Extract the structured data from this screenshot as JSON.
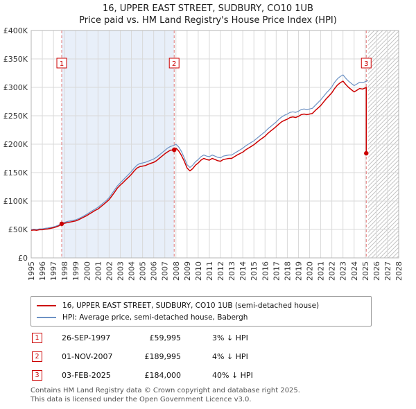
{
  "page": {
    "title": "16, UPPER EAST STREET, SUDBURY, CO10 1UB",
    "subtitle": "Price paid vs. HM Land Registry's House Price Index (HPI)",
    "footer_line1": "Contains HM Land Registry data © Crown copyright and database right 2025.",
    "footer_line2": "This data is licensed under the Open Government Licence v3.0."
  },
  "legend": {
    "series1": "16, UPPER EAST STREET, SUDBURY, CO10 1UB (semi-detached house)",
    "series2": "HPI: Average price, semi-detached house, Babergh"
  },
  "table": {
    "rows": [
      {
        "num": "1",
        "date": "26-SEP-1997",
        "price": "£59,995",
        "vs_hpi": "3% ↓ HPI"
      },
      {
        "num": "2",
        "date": "01-NOV-2007",
        "price": "£189,995",
        "vs_hpi": "4% ↓ HPI"
      },
      {
        "num": "3",
        "date": "03-FEB-2025",
        "price": "£184,000",
        "vs_hpi": "40% ↓ HPI"
      }
    ]
  },
  "chart_data": {
    "type": "line",
    "title": "16, UPPER EAST STREET, SUDBURY, CO10 1UB",
    "subtitle": "Price paid vs. HM Land Registry's House Price Index (HPI)",
    "units": "y values in GBP thousands",
    "x_range": [
      1995,
      2028
    ],
    "y_range_gbp": [
      0,
      400000
    ],
    "grid": true,
    "legend_position": "bottom",
    "x_ticks": [
      1995,
      1996,
      1997,
      1998,
      1999,
      2000,
      2001,
      2002,
      2003,
      2004,
      2005,
      2006,
      2007,
      2008,
      2009,
      2010,
      2011,
      2012,
      2013,
      2014,
      2015,
      2016,
      2017,
      2018,
      2019,
      2020,
      2021,
      2022,
      2023,
      2024,
      2025,
      2026,
      2027,
      2028
    ],
    "y_ticks": [
      {
        "value": 0,
        "label": "£0"
      },
      {
        "value": 50,
        "label": "£50K"
      },
      {
        "value": 100,
        "label": "£100K"
      },
      {
        "value": 150,
        "label": "£150K"
      },
      {
        "value": 200,
        "label": "£200K"
      },
      {
        "value": 250,
        "label": "£250K"
      },
      {
        "value": 300,
        "label": "£300K"
      },
      {
        "value": 350,
        "label": "£350K"
      },
      {
        "value": 400,
        "label": "£400K"
      }
    ],
    "shaded_span": [
      1997.74,
      2007.84
    ],
    "hatched_span": [
      2025.25,
      2028
    ],
    "sale_markers": [
      {
        "num": "1",
        "x": 1997.74,
        "y": 60,
        "price_gbp": 59995
      },
      {
        "num": "2",
        "x": 2007.84,
        "y": 190,
        "price_gbp": 189995
      },
      {
        "num": "3",
        "x": 2025.09,
        "y": 184,
        "price_gbp": 184000
      }
    ],
    "series": [
      {
        "name": "16, UPPER EAST STREET, SUDBURY, CO10 1UB (semi-detached house)",
        "color": "#cc0000",
        "points": [
          [
            1995,
            48.5
          ],
          [
            1995.25,
            49
          ],
          [
            1995.5,
            48.5
          ],
          [
            1995.75,
            49.5
          ],
          [
            1996,
            49.5
          ],
          [
            1996.25,
            50.5
          ],
          [
            1996.5,
            51
          ],
          [
            1996.75,
            52
          ],
          [
            1997,
            53
          ],
          [
            1997.25,
            54.5
          ],
          [
            1997.5,
            56.5
          ],
          [
            1997.74,
            60
          ],
          [
            1998,
            61
          ],
          [
            1998.25,
            62
          ],
          [
            1998.5,
            63
          ],
          [
            1998.75,
            64
          ],
          [
            1999,
            65
          ],
          [
            1999.25,
            67
          ],
          [
            1999.5,
            69.5
          ],
          [
            1999.75,
            72
          ],
          [
            2000,
            74.5
          ],
          [
            2000.25,
            77.5
          ],
          [
            2000.5,
            80.5
          ],
          [
            2000.75,
            83.5
          ],
          [
            2001,
            86
          ],
          [
            2001.25,
            90
          ],
          [
            2001.5,
            94
          ],
          [
            2001.75,
            98
          ],
          [
            2002,
            102.5
          ],
          [
            2002.25,
            109
          ],
          [
            2002.5,
            116
          ],
          [
            2002.75,
            123
          ],
          [
            2003,
            128
          ],
          [
            2003.25,
            132.5
          ],
          [
            2003.5,
            137.5
          ],
          [
            2003.75,
            142
          ],
          [
            2004,
            147
          ],
          [
            2004.25,
            153
          ],
          [
            2004.5,
            158
          ],
          [
            2004.75,
            160.5
          ],
          [
            2005,
            161.5
          ],
          [
            2005.25,
            162.5
          ],
          [
            2005.5,
            164.5
          ],
          [
            2005.75,
            166.5
          ],
          [
            2006,
            168
          ],
          [
            2006.25,
            171
          ],
          [
            2006.5,
            175
          ],
          [
            2006.75,
            179
          ],
          [
            2007,
            183
          ],
          [
            2007.25,
            186.5
          ],
          [
            2007.5,
            189.5
          ],
          [
            2007.84,
            190
          ],
          [
            2008,
            193
          ],
          [
            2008.25,
            188
          ],
          [
            2008.5,
            180
          ],
          [
            2008.75,
            170
          ],
          [
            2009,
            158
          ],
          [
            2009.25,
            153
          ],
          [
            2009.5,
            157
          ],
          [
            2009.75,
            163
          ],
          [
            2010,
            167
          ],
          [
            2010.25,
            172
          ],
          [
            2010.5,
            175
          ],
          [
            2010.75,
            173
          ],
          [
            2011,
            172
          ],
          [
            2011.25,
            175
          ],
          [
            2011.5,
            173
          ],
          [
            2011.75,
            171
          ],
          [
            2012,
            170
          ],
          [
            2012.25,
            173
          ],
          [
            2012.5,
            174
          ],
          [
            2012.75,
            175
          ],
          [
            2013,
            175
          ],
          [
            2013.25,
            178
          ],
          [
            2013.5,
            181
          ],
          [
            2013.75,
            183.5
          ],
          [
            2014,
            186
          ],
          [
            2014.25,
            190
          ],
          [
            2014.5,
            193
          ],
          [
            2014.75,
            196
          ],
          [
            2015,
            199
          ],
          [
            2015.25,
            203
          ],
          [
            2015.5,
            207
          ],
          [
            2015.75,
            210.5
          ],
          [
            2016,
            214
          ],
          [
            2016.25,
            219
          ],
          [
            2016.5,
            223
          ],
          [
            2016.75,
            227
          ],
          [
            2017,
            231
          ],
          [
            2017.25,
            235.5
          ],
          [
            2017.5,
            239.5
          ],
          [
            2017.75,
            242
          ],
          [
            2018,
            244
          ],
          [
            2018.25,
            247
          ],
          [
            2018.5,
            248
          ],
          [
            2018.75,
            247
          ],
          [
            2019,
            249
          ],
          [
            2019.25,
            252
          ],
          [
            2019.5,
            253
          ],
          [
            2019.75,
            252
          ],
          [
            2020,
            253
          ],
          [
            2020.25,
            254
          ],
          [
            2020.5,
            259
          ],
          [
            2020.75,
            263.5
          ],
          [
            2021,
            268
          ],
          [
            2021.25,
            274
          ],
          [
            2021.5,
            280
          ],
          [
            2021.75,
            285
          ],
          [
            2022,
            290.5
          ],
          [
            2022.25,
            298
          ],
          [
            2022.5,
            304
          ],
          [
            2022.75,
            308
          ],
          [
            2023,
            311
          ],
          [
            2023.25,
            305
          ],
          [
            2023.5,
            300
          ],
          [
            2023.75,
            296
          ],
          [
            2024,
            292
          ],
          [
            2024.25,
            295
          ],
          [
            2024.5,
            298
          ],
          [
            2024.75,
            297
          ],
          [
            2025,
            299
          ],
          [
            2025.09,
            300
          ],
          [
            2025.09,
            184
          ]
        ]
      },
      {
        "name": "HPI: Average price, semi-detached house, Babergh",
        "color": "#6d92c4",
        "points": [
          [
            1995,
            50
          ],
          [
            1995.25,
            50.5
          ],
          [
            1995.5,
            50
          ],
          [
            1995.75,
            51
          ],
          [
            1996,
            51
          ],
          [
            1996.25,
            52
          ],
          [
            1996.5,
            52.5
          ],
          [
            1996.75,
            53.5
          ],
          [
            1997,
            54.5
          ],
          [
            1997.25,
            56
          ],
          [
            1997.5,
            58
          ],
          [
            1997.74,
            61.5
          ],
          [
            1998,
            62.5
          ],
          [
            1998.25,
            64
          ],
          [
            1998.5,
            65
          ],
          [
            1998.75,
            66
          ],
          [
            1999,
            67
          ],
          [
            1999.25,
            69
          ],
          [
            1999.5,
            71.5
          ],
          [
            1999.75,
            74
          ],
          [
            2000,
            77
          ],
          [
            2000.25,
            80
          ],
          [
            2000.5,
            83
          ],
          [
            2000.75,
            86
          ],
          [
            2001,
            89
          ],
          [
            2001.25,
            93
          ],
          [
            2001.5,
            97
          ],
          [
            2001.75,
            101
          ],
          [
            2002,
            106
          ],
          [
            2002.25,
            113
          ],
          [
            2002.5,
            120
          ],
          [
            2002.75,
            127
          ],
          [
            2003,
            132
          ],
          [
            2003.25,
            137
          ],
          [
            2003.5,
            142
          ],
          [
            2003.75,
            147
          ],
          [
            2004,
            152
          ],
          [
            2004.25,
            158
          ],
          [
            2004.5,
            163
          ],
          [
            2004.75,
            166
          ],
          [
            2005,
            167
          ],
          [
            2005.25,
            168
          ],
          [
            2005.5,
            170
          ],
          [
            2005.75,
            172
          ],
          [
            2006,
            174
          ],
          [
            2006.25,
            177
          ],
          [
            2006.5,
            181
          ],
          [
            2006.75,
            185
          ],
          [
            2007,
            189
          ],
          [
            2007.25,
            193
          ],
          [
            2007.5,
            196
          ],
          [
            2007.84,
            198
          ],
          [
            2008,
            200
          ],
          [
            2008.25,
            195
          ],
          [
            2008.5,
            187
          ],
          [
            2008.75,
            176
          ],
          [
            2009,
            164
          ],
          [
            2009.25,
            159
          ],
          [
            2009.5,
            163
          ],
          [
            2009.75,
            169
          ],
          [
            2010,
            173
          ],
          [
            2010.25,
            178
          ],
          [
            2010.5,
            181
          ],
          [
            2010.75,
            179
          ],
          [
            2011,
            178
          ],
          [
            2011.25,
            181
          ],
          [
            2011.5,
            179
          ],
          [
            2011.75,
            177
          ],
          [
            2012,
            176
          ],
          [
            2012.25,
            179
          ],
          [
            2012.5,
            180
          ],
          [
            2012.75,
            181
          ],
          [
            2013,
            181
          ],
          [
            2013.25,
            184
          ],
          [
            2013.5,
            187
          ],
          [
            2013.75,
            190
          ],
          [
            2014,
            193
          ],
          [
            2014.25,
            197
          ],
          [
            2014.5,
            200
          ],
          [
            2014.75,
            203
          ],
          [
            2015,
            206
          ],
          [
            2015.25,
            210
          ],
          [
            2015.5,
            214
          ],
          [
            2015.75,
            218
          ],
          [
            2016,
            222
          ],
          [
            2016.25,
            227
          ],
          [
            2016.5,
            231
          ],
          [
            2016.75,
            235
          ],
          [
            2017,
            239
          ],
          [
            2017.25,
            244
          ],
          [
            2017.5,
            248
          ],
          [
            2017.75,
            251
          ],
          [
            2018,
            253
          ],
          [
            2018.25,
            256
          ],
          [
            2018.5,
            257
          ],
          [
            2018.75,
            256
          ],
          [
            2019,
            258
          ],
          [
            2019.25,
            261
          ],
          [
            2019.5,
            262
          ],
          [
            2019.75,
            261
          ],
          [
            2020,
            262
          ],
          [
            2020.25,
            263
          ],
          [
            2020.5,
            268
          ],
          [
            2020.75,
            273
          ],
          [
            2021,
            278
          ],
          [
            2021.25,
            284
          ],
          [
            2021.5,
            290
          ],
          [
            2021.75,
            295
          ],
          [
            2022,
            301
          ],
          [
            2022.25,
            309
          ],
          [
            2022.5,
            315
          ],
          [
            2022.75,
            319
          ],
          [
            2023,
            322
          ],
          [
            2023.25,
            316
          ],
          [
            2023.5,
            311
          ],
          [
            2023.75,
            307
          ],
          [
            2024,
            303
          ],
          [
            2024.25,
            306
          ],
          [
            2024.5,
            309
          ],
          [
            2024.75,
            308
          ],
          [
            2025,
            310
          ],
          [
            2025.25,
            312
          ]
        ]
      }
    ]
  }
}
